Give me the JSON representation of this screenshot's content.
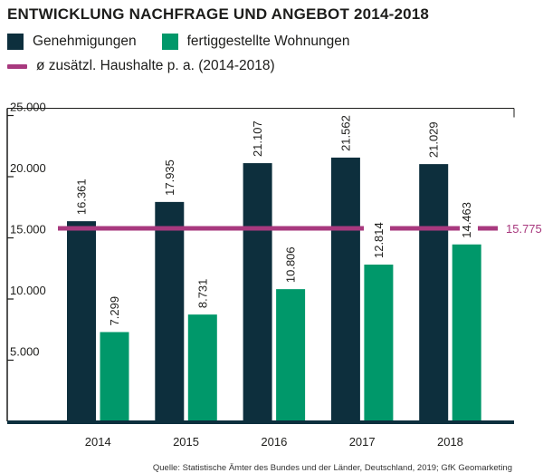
{
  "title": "ENTWICKLUNG NACHFRAGE UND ANGEBOT 2014-2018",
  "colors": {
    "genehmigungen": "#0d2f3d",
    "fertiggestellt": "#00986a",
    "haushalte": "#a8397e",
    "text": "#1d1d1b"
  },
  "legend": {
    "genehmigungen": "Genehmigungen",
    "fertiggestellt": "fertiggestellte Wohnungen",
    "haushalte": "ø zusätzl. Haushalte p. a. (2014-2018)"
  },
  "source": "Quelle: Statistische Ämter des Bundes und der Länder, Deutschland, 2019; GfK Geomarketing",
  "chart_data": {
    "type": "bar",
    "title": "ENTWICKLUNG NACHFRAGE UND ANGEBOT 2014-2018",
    "xlabel": "",
    "ylabel": "",
    "categories": [
      "2014",
      "2015",
      "2016",
      "2017",
      "2018"
    ],
    "series": [
      {
        "name": "Genehmigungen",
        "values": [
          16361,
          17935,
          21107,
          21562,
          21029
        ],
        "labels": [
          "16.361",
          "17.935",
          "21.107",
          "21.562",
          "21.029"
        ]
      },
      {
        "name": "fertiggestellte Wohnungen",
        "values": [
          7299,
          8731,
          10806,
          12814,
          14463
        ],
        "labels": [
          "7.299",
          "8.731",
          "10.806",
          "12.814",
          "14.463"
        ]
      }
    ],
    "reference_line": {
      "name": "ø zusätzl. Haushalte p. a. (2014-2018)",
      "value": 15775,
      "label": "15.775"
    },
    "yticks": [
      5000,
      10000,
      15000,
      20000,
      25000
    ],
    "ytick_labels": [
      "5.000",
      "10.000",
      "15.000",
      "20.000",
      "25.000"
    ],
    "ylim": [
      0,
      25000
    ],
    "grid": false,
    "legend_position": "top-left"
  }
}
